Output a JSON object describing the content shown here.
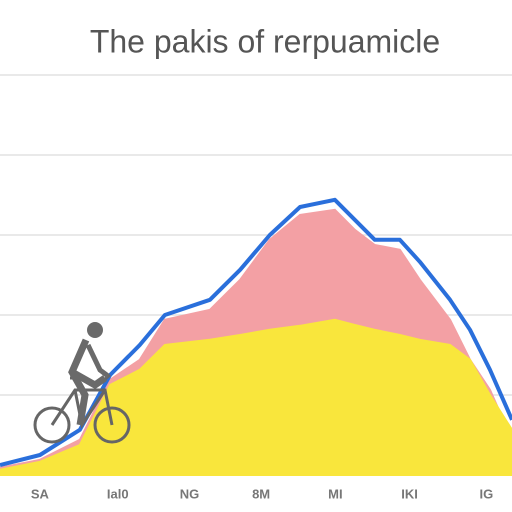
{
  "chart_data": {
    "type": "area",
    "title": "The pakis of rerpuamicle",
    "x": [
      0,
      7.8,
      15.6,
      21.5,
      27.3,
      32.2,
      41,
      46.9,
      52.7,
      58.6,
      65.4,
      69.3,
      73.2,
      78.1,
      82,
      87.9,
      91.8,
      95.7,
      100
    ],
    "series": [
      {
        "color": "#f3a0a4",
        "values": [
          1.8,
          3.8,
          8.8,
          23.8,
          28.8,
          38.8,
          41.3,
          48.8,
          58.8,
          65,
          66.3,
          61.3,
          57.5,
          56.3,
          48.8,
          38.8,
          28.8,
          21.3,
          8.8
        ]
      },
      {
        "color": "#f9e63c",
        "values": [
          1.3,
          3.3,
          7.5,
          22.5,
          26.3,
          32.5,
          33.8,
          35,
          36.3,
          37.3,
          38.8,
          37.5,
          36.3,
          35,
          33.8,
          32.5,
          28.8,
          20,
          11.3
        ]
      },
      {
        "color": "#2a6fdb",
        "values": [
          2.5,
          5,
          11.3,
          25,
          32.5,
          40,
          43.8,
          51.3,
          60,
          67,
          68.8,
          63.8,
          58.8,
          58.8,
          53.3,
          43.8,
          36.3,
          26.3,
          13.8
        ]
      }
    ],
    "xlim": [
      0,
      100
    ],
    "xticks": [
      {
        "value": 7.8,
        "label": "SA"
      },
      {
        "value": 23,
        "label": "Ial0"
      },
      {
        "value": 37,
        "label": "NG"
      },
      {
        "value": 51,
        "label": "8M"
      },
      {
        "value": 65.5,
        "label": "MI"
      },
      {
        "value": 80,
        "label": "IKI"
      },
      {
        "value": 95,
        "label": "IG"
      }
    ],
    "ylim": [
      0,
      100
    ],
    "yticks": [
      20,
      40,
      60,
      80,
      100
    ],
    "grid": true
  }
}
